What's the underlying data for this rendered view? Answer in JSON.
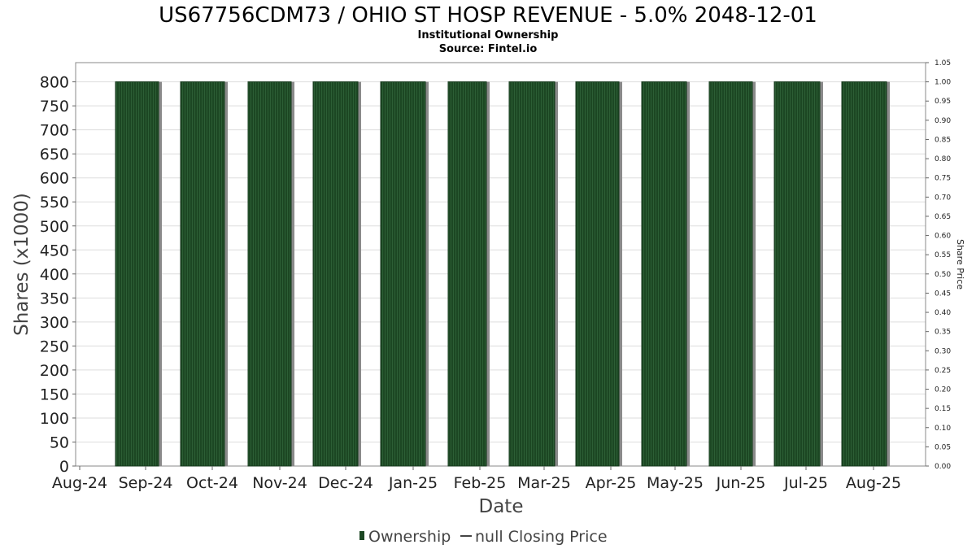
{
  "chart_data": {
    "type": "bar",
    "title": "US67756CDM73 / OHIO ST HOSP REVENUE - 5.0% 2048-12-01",
    "subtitle_lines": [
      "Institutional Ownership",
      "Source: Fintel.io"
    ],
    "xlabel": "Date",
    "ylabel": "Shares (x1000)",
    "y2label": "Share Price",
    "x_ticks": [
      "Aug-24",
      "Sep-24",
      "Oct-24",
      "Nov-24",
      "Dec-24",
      "Jan-25",
      "Feb-25",
      "Mar-25",
      "Apr-25",
      "May-25",
      "Jun-25",
      "Jul-25",
      "Aug-25"
    ],
    "y_ticks": [
      "0",
      "50",
      "100",
      "150",
      "200",
      "250",
      "300",
      "350",
      "400",
      "450",
      "500",
      "550",
      "600",
      "650",
      "700",
      "750",
      "800"
    ],
    "y2_ticks": [
      "0.00",
      "0.05",
      "0.10",
      "0.15",
      "0.20",
      "0.25",
      "0.30",
      "0.35",
      "0.40",
      "0.45",
      "0.50",
      "0.55",
      "0.60",
      "0.65",
      "0.70",
      "0.75",
      "0.80",
      "0.85",
      "0.90",
      "0.95",
      "1.00",
      "1.05"
    ],
    "ylim": [
      0,
      840
    ],
    "y2lim": [
      0,
      1.05
    ],
    "categories": [
      "Sep-24",
      "Oct-24",
      "Nov-24",
      "Dec-24",
      "Jan-25",
      "Feb-25",
      "Mar-25",
      "Apr-25",
      "May-25",
      "Jun-25",
      "Jul-25",
      "Aug-25"
    ],
    "series": [
      {
        "name": "Ownership",
        "values": [
          800,
          800,
          800,
          800,
          800,
          800,
          800,
          800,
          800,
          800,
          800,
          800
        ]
      }
    ],
    "legend": [
      {
        "label": "Ownership",
        "kind": "bar"
      },
      {
        "label": "null Closing Price",
        "kind": "line"
      }
    ],
    "legend_position": "bottom-center",
    "grid": true,
    "colors": {
      "bar": "#1c4723",
      "bar_shadow": "#8a8a8a",
      "grid": "#dddddd",
      "line": "#444444"
    }
  }
}
